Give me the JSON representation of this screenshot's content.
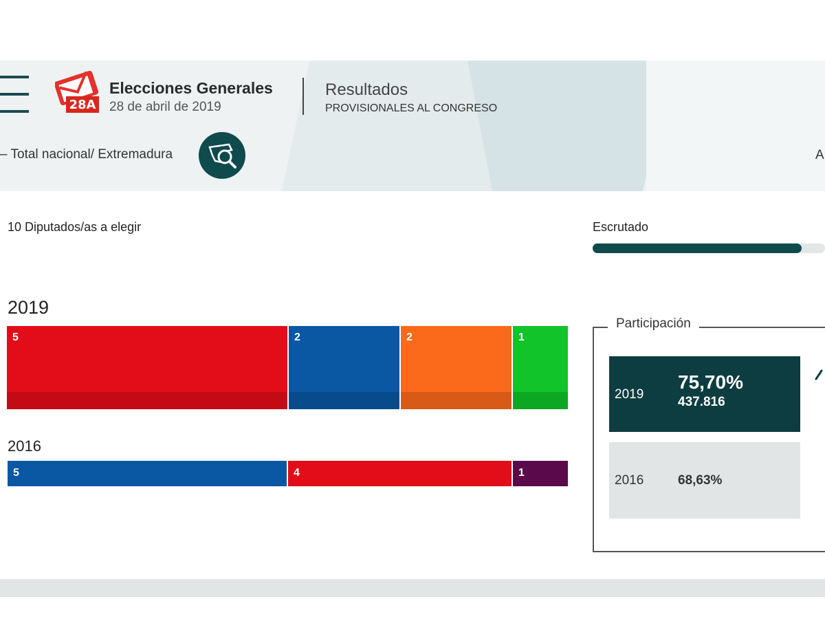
{
  "header": {
    "title": "Elecciones Generales",
    "date": "28 de abril de 2019",
    "logo_badge": "28A",
    "results_title": "Resultados",
    "results_subtitle": "PROVISIONALES AL CONGRESO",
    "location": "– Total nacional/ Extremadura",
    "edge_text": "A",
    "menu_icon": "hamburger-icon",
    "map_icon": "map-search-icon"
  },
  "summary": {
    "seats_label": "10 Diputados/as a elegir",
    "scrutiny_label": "Escrutado",
    "scrutiny_progress": 0.9
  },
  "seats": {
    "y2019": {
      "label": "2019",
      "segments": [
        {
          "value": "5",
          "color": "#e20d18",
          "dark": "#c30a15"
        },
        {
          "value": "2",
          "color": "#0a57a4",
          "dark": "#084b8d"
        },
        {
          "value": "2",
          "color": "#fb6a1a",
          "dark": "#d95a16"
        },
        {
          "value": "1",
          "color": "#10c42a",
          "dark": "#0da823"
        }
      ]
    },
    "y2016": {
      "label": "2016",
      "segments": [
        {
          "value": "5",
          "color": "#0a57a4"
        },
        {
          "value": "4",
          "color": "#e20d18"
        },
        {
          "value": "1",
          "color": "#5a0a4a"
        }
      ]
    }
  },
  "participation": {
    "legend": "Participación",
    "y2019": {
      "year": "2019",
      "percent": "75,70%",
      "votes": "437.816"
    },
    "y2016": {
      "year": "2016",
      "percent": "68,63%"
    }
  },
  "colors": {
    "accent": "#0f4a4d",
    "red": "#e20d18",
    "blue": "#0a57a4",
    "orange": "#fb6a1a",
    "green": "#10c42a",
    "purple": "#5a0a4a"
  }
}
